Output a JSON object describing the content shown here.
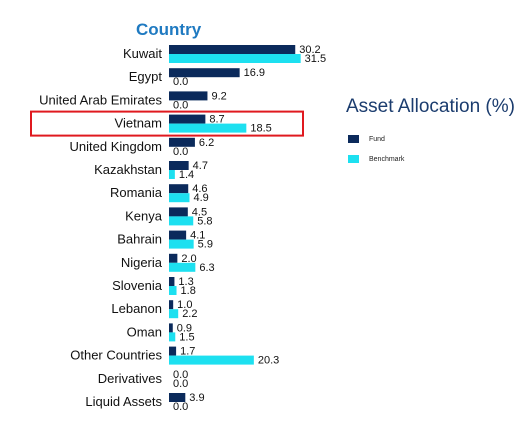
{
  "chart_data": {
    "type": "bar",
    "orientation": "horizontal",
    "title": "Country",
    "categories": [
      "Kuwait",
      "Egypt",
      "United Arab Emirates",
      "Vietnam",
      "United Kingdom",
      "Kazakhstan",
      "Romania",
      "Kenya",
      "Bahrain",
      "Nigeria",
      "Slovenia",
      "Lebanon",
      "Oman",
      "Other Countries",
      "Derivatives",
      "Liquid Assets"
    ],
    "series": [
      {
        "name": "Fund",
        "color": "#0b2a5b",
        "values": [
          30.2,
          16.9,
          9.2,
          8.7,
          6.2,
          4.7,
          4.6,
          4.5,
          4.1,
          2.0,
          1.3,
          1.0,
          0.9,
          1.7,
          0.0,
          3.9
        ]
      },
      {
        "name": "Benchmark",
        "color": "#1de0f0",
        "values": [
          31.5,
          0.0,
          0.0,
          18.5,
          0.0,
          1.4,
          4.9,
          5.8,
          5.9,
          6.3,
          1.8,
          2.2,
          1.5,
          20.3,
          0.0,
          0.0
        ]
      }
    ],
    "highlight_category": "Vietnam",
    "highlight_color": "#e0191f",
    "grid": false
  },
  "panel": {
    "title": "Asset Allocation (%)",
    "legend": [
      {
        "label": "Fund",
        "color": "#0b2a5b"
      },
      {
        "label": "Benchmark",
        "color": "#1de0f0"
      }
    ]
  }
}
